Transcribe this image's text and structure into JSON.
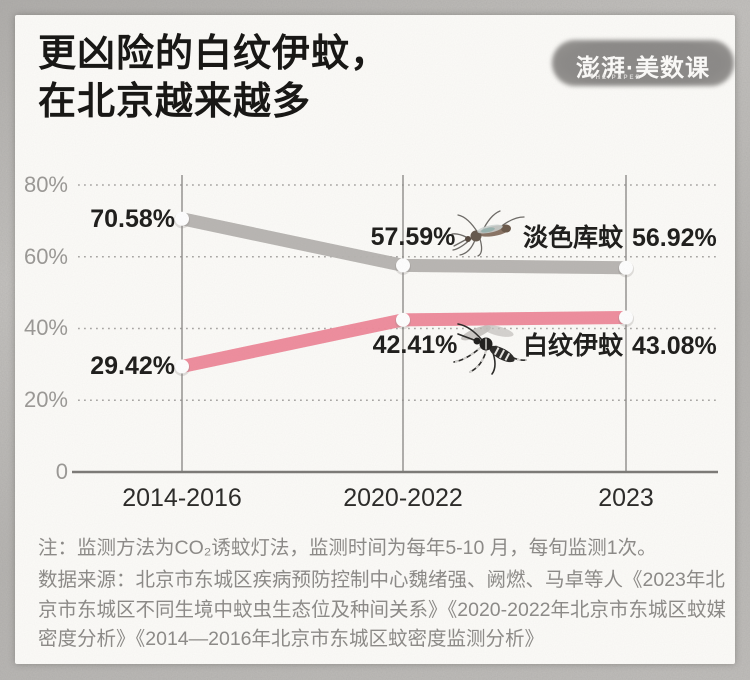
{
  "header": {
    "title_line1": "更凶险的白纹伊蚊，",
    "title_line2": "在北京越来越多",
    "logo": {
      "text": "澎湃·美数课",
      "subtext": "THE PAPER"
    }
  },
  "chart_data": {
    "type": "line",
    "title": "更凶险的白纹伊蚊，在北京越来越多",
    "categories": [
      "2014-2016",
      "2020-2022",
      "2023"
    ],
    "series": [
      {
        "name": "淡色库蚊",
        "color": "#bdbab7",
        "grain_color": "#9e9b97",
        "values": [
          70.58,
          57.59,
          56.92
        ],
        "point_labels": [
          "70.58%",
          "57.59%",
          "56.92%"
        ]
      },
      {
        "name": "白纹伊蚊",
        "color": "#f2919f",
        "grain_color": "#e4708a",
        "values": [
          29.42,
          42.41,
          43.08
        ],
        "point_labels": [
          "29.42%",
          "42.41%",
          "43.08%"
        ]
      }
    ],
    "y_ticks": [
      {
        "label": "80%",
        "value": 80
      },
      {
        "label": "60%",
        "value": 60
      },
      {
        "label": "40%",
        "value": 40
      },
      {
        "label": "20%",
        "value": 20
      },
      {
        "label": "0",
        "value": 0
      }
    ],
    "ylim": [
      0,
      80
    ],
    "grid": "dotted-horizontal",
    "legend_position": "inline-right",
    "marker": "white-dot"
  },
  "notes": {
    "method": "注：监测方法为CO₂诱蚊灯法，监测时间为每年5-10 月，每旬监测1次。",
    "source": "数据来源：北京市东城区疾病预防控制中心魏绪强、阙燃、马卓等人《2023年北京市东城区不同生境中蚊虫生态位及种间关系》《2020-2022年北京市东城区蚊媒密度分析》《2014—2016年北京市东城区蚊密度监测分析》"
  },
  "colors": {
    "background_card": "#fcfbf8",
    "frame": "#bdbbb8",
    "series_gray": "#bdbab7",
    "series_pink": "#f2919f",
    "text_dark": "#1e1d1b",
    "text_gray": "#8d8b88"
  }
}
